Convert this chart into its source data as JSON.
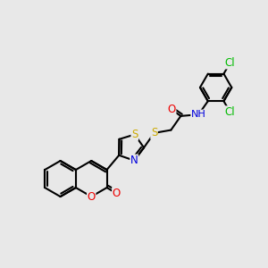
{
  "background_color": "#e8e8e8",
  "bond_color": "#000000",
  "bond_width": 1.5,
  "atom_colors": {
    "N": "#0000dd",
    "O": "#ee0000",
    "S": "#ccaa00",
    "Cl": "#00bb00"
  },
  "font_size": 8.5,
  "fig_width": 3.0,
  "fig_height": 3.0,
  "dpi": 100,
  "xlim": [
    0,
    10
  ],
  "ylim": [
    0,
    10
  ]
}
